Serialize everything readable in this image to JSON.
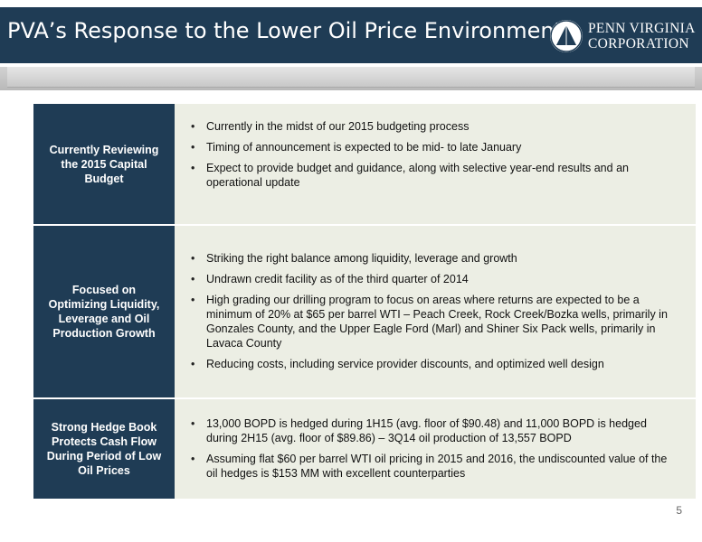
{
  "header": {
    "title": "PVA’s Response to the Lower Oil Price Environment",
    "logo": {
      "line1": "PENN VIRGINIA",
      "line2": "CORPORATION"
    }
  },
  "rows": [
    {
      "label": "Currently Reviewing the 2015 Capital Budget",
      "bullets": [
        "Currently in the midst of our 2015 budgeting process",
        "Timing of announcement is expected to be mid- to late January",
        "Expect to provide budget and guidance, along with selective year-end results and an operational update"
      ]
    },
    {
      "label": "Focused on Optimizing Liquidity, Leverage and Oil Production Growth",
      "bullets": [
        "Striking the right balance among liquidity, leverage and growth",
        "Undrawn credit facility as of the third quarter of 2014",
        "High grading our drilling program to focus on areas where returns are expected to be a minimum of 20% at $65 per barrel WTI – Peach Creek, Rock Creek/Bozka wells, primarily in Gonzales County, and the Upper Eagle Ford (Marl) and Shiner Six Pack wells, primarily in Lavaca County",
        "Reducing costs, including service provider discounts, and optimized well design"
      ]
    },
    {
      "label": "Strong Hedge Book Protects Cash Flow During Period of Low Oil Prices",
      "bullets": [
        "13,000 BOPD is hedged during 1H15 (avg. floor of $90.48) and 11,000 BOPD is hedged during 2H15 (avg. floor of $89.86) – 3Q14 oil production of 13,557 BOPD",
        "Assuming flat $60 per barrel WTI oil pricing in 2015 and 2016, the undiscounted value of the oil hedges is $153 MM with excellent counterparties"
      ]
    }
  ],
  "page_number": "5",
  "colors": {
    "navy": "#1f3c55",
    "content_bg": "#eceee4"
  }
}
